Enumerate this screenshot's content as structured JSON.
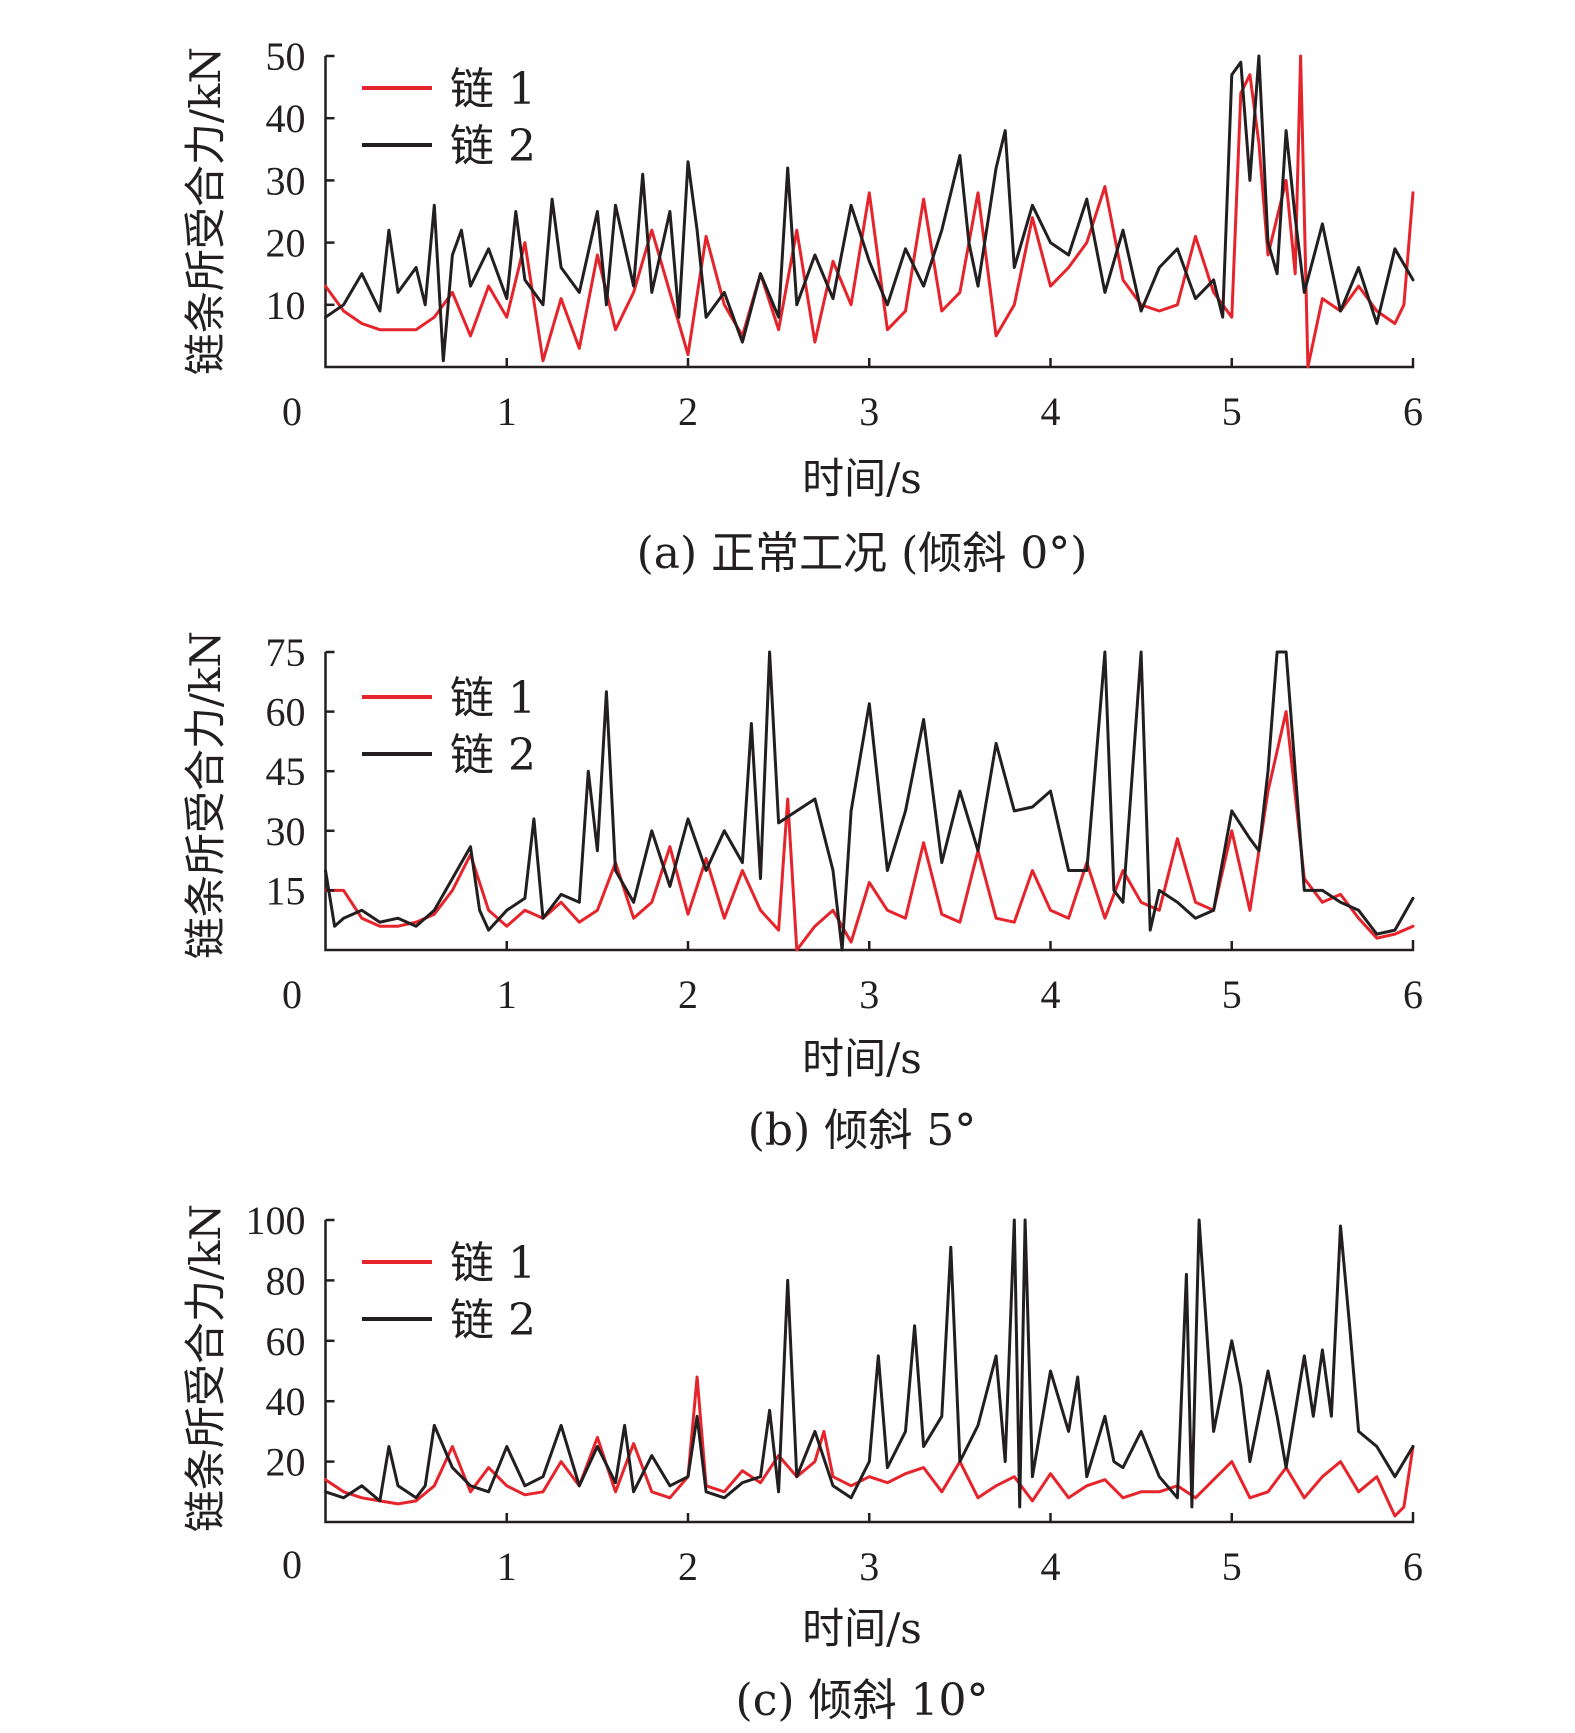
{
  "colors": {
    "chain1": "#e5242b",
    "chain2": "#231f20"
  },
  "chart_data": [
    {
      "type": "line",
      "caption": "(a) 正常工况 (倾斜 0°)",
      "xlabel": "时间/s",
      "ylabel": "链条所受合力/kN",
      "xlim": [
        0,
        6
      ],
      "ylim": [
        0,
        50
      ],
      "xticks": [
        "0",
        "1",
        "2",
        "3",
        "4",
        "5",
        "6"
      ],
      "yticks": [
        "10",
        "20",
        "30",
        "40",
        "50"
      ],
      "legend": {
        "position": "top-left",
        "entries": [
          "链 1",
          "链 2"
        ]
      },
      "series": [
        {
          "name": "链 1",
          "x": [
            0,
            0.1,
            0.2,
            0.3,
            0.4,
            0.5,
            0.6,
            0.7,
            0.8,
            0.9,
            1.0,
            1.1,
            1.2,
            1.3,
            1.4,
            1.5,
            1.6,
            1.7,
            1.8,
            1.9,
            2.0,
            2.1,
            2.2,
            2.3,
            2.4,
            2.5,
            2.6,
            2.7,
            2.8,
            2.9,
            3.0,
            3.1,
            3.2,
            3.3,
            3.4,
            3.5,
            3.6,
            3.7,
            3.8,
            3.9,
            4.0,
            4.1,
            4.2,
            4.3,
            4.4,
            4.5,
            4.6,
            4.7,
            4.8,
            4.9,
            5.0,
            5.05,
            5.1,
            5.15,
            5.2,
            5.3,
            5.35,
            5.38,
            5.42,
            5.5,
            5.6,
            5.7,
            5.8,
            5.9,
            5.95,
            6.0
          ],
          "y": [
            13,
            9,
            7,
            6,
            6,
            6,
            8,
            12,
            5,
            13,
            8,
            20,
            1,
            11,
            3,
            18,
            6,
            12,
            22,
            12,
            2,
            21,
            10,
            5,
            15,
            6,
            22,
            4,
            17,
            10,
            28,
            6,
            9,
            27,
            9,
            12,
            28,
            5,
            10,
            24,
            13,
            16,
            20,
            29,
            14,
            10,
            9,
            10,
            21,
            12,
            8,
            44,
            47,
            36,
            18,
            30,
            15,
            50,
            0,
            11,
            9,
            13,
            9,
            7,
            10,
            28
          ]
        },
        {
          "name": "链 2",
          "x": [
            0,
            0.1,
            0.2,
            0.3,
            0.35,
            0.4,
            0.5,
            0.55,
            0.6,
            0.65,
            0.7,
            0.75,
            0.8,
            0.9,
            1.0,
            1.05,
            1.1,
            1.2,
            1.25,
            1.3,
            1.4,
            1.5,
            1.55,
            1.6,
            1.7,
            1.75,
            1.8,
            1.9,
            1.95,
            2.0,
            2.05,
            2.1,
            2.2,
            2.3,
            2.4,
            2.5,
            2.55,
            2.6,
            2.7,
            2.8,
            2.9,
            3.0,
            3.1,
            3.2,
            3.3,
            3.4,
            3.5,
            3.55,
            3.6,
            3.7,
            3.75,
            3.8,
            3.9,
            4.0,
            4.1,
            4.2,
            4.3,
            4.4,
            4.5,
            4.6,
            4.7,
            4.8,
            4.9,
            4.95,
            5.0,
            5.05,
            5.1,
            5.15,
            5.2,
            5.25,
            5.3,
            5.35,
            5.4,
            5.5,
            5.6,
            5.7,
            5.8,
            5.9,
            6.0
          ],
          "y": [
            8,
            10,
            15,
            9,
            22,
            12,
            16,
            10,
            26,
            1,
            18,
            22,
            13,
            19,
            11,
            25,
            14,
            10,
            27,
            16,
            12,
            25,
            10,
            26,
            13,
            31,
            12,
            25,
            8,
            33,
            22,
            8,
            12,
            4,
            15,
            8,
            32,
            10,
            18,
            11,
            26,
            17,
            10,
            19,
            13,
            22,
            34,
            20,
            13,
            32,
            38,
            16,
            26,
            20,
            18,
            27,
            12,
            22,
            9,
            16,
            19,
            11,
            14,
            8,
            47,
            49,
            30,
            50,
            20,
            15,
            38,
            24,
            12,
            23,
            9,
            16,
            7,
            19,
            14
          ]
        }
      ]
    },
    {
      "type": "line",
      "caption": "(b) 倾斜 5°",
      "xlabel": "时间/s",
      "ylabel": "链条所受合力/kN",
      "xlim": [
        0,
        6
      ],
      "ylim": [
        0,
        75
      ],
      "xticks": [
        "0",
        "1",
        "2",
        "3",
        "4",
        "5",
        "6"
      ],
      "yticks": [
        "15",
        "30",
        "45",
        "60",
        "75"
      ],
      "legend": {
        "position": "top-left",
        "entries": [
          "链 1",
          "链 2"
        ]
      },
      "series": [
        {
          "name": "链 1",
          "x": [
            0,
            0.1,
            0.2,
            0.3,
            0.4,
            0.5,
            0.6,
            0.7,
            0.8,
            0.9,
            1.0,
            1.1,
            1.2,
            1.3,
            1.4,
            1.5,
            1.6,
            1.7,
            1.8,
            1.9,
            2.0,
            2.1,
            2.2,
            2.3,
            2.4,
            2.5,
            2.55,
            2.6,
            2.7,
            2.8,
            2.9,
            3.0,
            3.1,
            3.2,
            3.3,
            3.4,
            3.5,
            3.6,
            3.7,
            3.8,
            3.9,
            4.0,
            4.1,
            4.2,
            4.3,
            4.4,
            4.5,
            4.6,
            4.7,
            4.8,
            4.9,
            5.0,
            5.1,
            5.2,
            5.3,
            5.4,
            5.5,
            5.6,
            5.7,
            5.8,
            5.9,
            6.0
          ],
          "y": [
            15,
            15,
            8,
            6,
            6,
            7,
            9,
            15,
            24,
            10,
            6,
            10,
            8,
            12,
            7,
            10,
            22,
            8,
            12,
            26,
            9,
            23,
            8,
            20,
            10,
            5,
            38,
            0,
            6,
            10,
            2,
            17,
            10,
            8,
            27,
            9,
            7,
            25,
            8,
            7,
            20,
            10,
            8,
            22,
            8,
            20,
            12,
            10,
            28,
            12,
            10,
            30,
            10,
            40,
            60,
            18,
            12,
            14,
            8,
            3,
            4,
            6
          ]
        },
        {
          "name": "链 2",
          "x": [
            0,
            0.05,
            0.1,
            0.2,
            0.3,
            0.4,
            0.5,
            0.6,
            0.7,
            0.8,
            0.85,
            0.9,
            1.0,
            1.1,
            1.15,
            1.2,
            1.3,
            1.4,
            1.45,
            1.5,
            1.55,
            1.6,
            1.7,
            1.8,
            1.9,
            2.0,
            2.1,
            2.2,
            2.3,
            2.35,
            2.4,
            2.45,
            2.5,
            2.6,
            2.7,
            2.8,
            2.85,
            2.9,
            3.0,
            3.1,
            3.2,
            3.3,
            3.4,
            3.5,
            3.6,
            3.7,
            3.8,
            3.9,
            4.0,
            4.1,
            4.2,
            4.3,
            4.35,
            4.4,
            4.5,
            4.55,
            4.6,
            4.7,
            4.8,
            4.9,
            5.0,
            5.1,
            5.15,
            5.2,
            5.25,
            5.3,
            5.4,
            5.5,
            5.6,
            5.7,
            5.8,
            5.9,
            6.0
          ],
          "y": [
            20,
            6,
            8,
            10,
            7,
            8,
            6,
            10,
            18,
            26,
            10,
            5,
            10,
            13,
            33,
            8,
            14,
            12,
            45,
            25,
            65,
            20,
            12,
            30,
            16,
            33,
            20,
            30,
            22,
            57,
            18,
            75,
            32,
            35,
            38,
            20,
            0,
            35,
            62,
            20,
            35,
            58,
            22,
            40,
            25,
            52,
            35,
            36,
            40,
            20,
            20,
            75,
            15,
            12,
            75,
            5,
            15,
            12,
            8,
            10,
            35,
            28,
            25,
            45,
            75,
            75,
            15,
            15,
            12,
            10,
            4,
            5,
            13
          ]
        }
      ]
    },
    {
      "type": "line",
      "caption": "(c) 倾斜 10°",
      "xlabel": "时间/s",
      "ylabel": "链条所受合力/kN",
      "xlim": [
        0,
        6
      ],
      "ylim": [
        0,
        100
      ],
      "xticks": [
        "0",
        "1",
        "2",
        "3",
        "4",
        "5",
        "6"
      ],
      "yticks": [
        "20",
        "40",
        "60",
        "80",
        "100"
      ],
      "legend": {
        "position": "top-left",
        "entries": [
          "链 1",
          "链 2"
        ]
      },
      "series": [
        {
          "name": "链 1",
          "x": [
            0,
            0.1,
            0.2,
            0.3,
            0.4,
            0.5,
            0.6,
            0.7,
            0.8,
            0.9,
            1.0,
            1.1,
            1.2,
            1.3,
            1.4,
            1.5,
            1.6,
            1.7,
            1.8,
            1.9,
            2.0,
            2.05,
            2.1,
            2.2,
            2.3,
            2.4,
            2.5,
            2.6,
            2.7,
            2.75,
            2.8,
            2.9,
            3.0,
            3.1,
            3.2,
            3.3,
            3.4,
            3.5,
            3.6,
            3.7,
            3.8,
            3.9,
            4.0,
            4.1,
            4.2,
            4.3,
            4.4,
            4.5,
            4.6,
            4.7,
            4.8,
            4.9,
            5.0,
            5.1,
            5.2,
            5.3,
            5.4,
            5.5,
            5.6,
            5.7,
            5.8,
            5.9,
            5.95,
            6.0
          ],
          "y": [
            14,
            10,
            8,
            7,
            6,
            7,
            12,
            25,
            10,
            18,
            12,
            9,
            10,
            20,
            12,
            28,
            10,
            26,
            10,
            8,
            15,
            48,
            12,
            10,
            17,
            13,
            22,
            15,
            20,
            30,
            15,
            12,
            15,
            13,
            16,
            18,
            10,
            20,
            8,
            12,
            15,
            7,
            16,
            8,
            12,
            14,
            8,
            10,
            10,
            12,
            8,
            14,
            20,
            8,
            10,
            18,
            8,
            15,
            20,
            10,
            15,
            2,
            5,
            25
          ]
        },
        {
          "name": "链 2",
          "x": [
            0,
            0.1,
            0.2,
            0.3,
            0.35,
            0.4,
            0.5,
            0.55,
            0.6,
            0.7,
            0.8,
            0.9,
            1.0,
            1.1,
            1.2,
            1.3,
            1.4,
            1.5,
            1.6,
            1.65,
            1.7,
            1.8,
            1.9,
            2.0,
            2.05,
            2.1,
            2.2,
            2.3,
            2.4,
            2.45,
            2.5,
            2.55,
            2.6,
            2.7,
            2.8,
            2.9,
            3.0,
            3.05,
            3.1,
            3.2,
            3.25,
            3.3,
            3.4,
            3.45,
            3.5,
            3.6,
            3.7,
            3.75,
            3.8,
            3.83,
            3.86,
            3.9,
            4.0,
            4.1,
            4.15,
            4.2,
            4.3,
            4.35,
            4.4,
            4.5,
            4.6,
            4.7,
            4.75,
            4.78,
            4.82,
            4.9,
            5.0,
            5.05,
            5.1,
            5.2,
            5.25,
            5.3,
            5.4,
            5.45,
            5.5,
            5.55,
            5.6,
            5.65,
            5.7,
            5.8,
            5.9,
            6.0
          ],
          "y": [
            10,
            8,
            12,
            7,
            25,
            12,
            8,
            12,
            32,
            18,
            12,
            10,
            25,
            12,
            15,
            32,
            12,
            25,
            13,
            32,
            10,
            22,
            12,
            15,
            35,
            10,
            8,
            13,
            15,
            37,
            10,
            80,
            15,
            30,
            12,
            8,
            20,
            55,
            18,
            30,
            65,
            25,
            35,
            91,
            20,
            32,
            55,
            20,
            100,
            5,
            100,
            15,
            50,
            30,
            48,
            15,
            35,
            20,
            18,
            30,
            15,
            8,
            82,
            5,
            100,
            30,
            60,
            45,
            20,
            50,
            35,
            18,
            55,
            35,
            57,
            35,
            98,
            65,
            30,
            25,
            15,
            25
          ]
        }
      ]
    }
  ]
}
